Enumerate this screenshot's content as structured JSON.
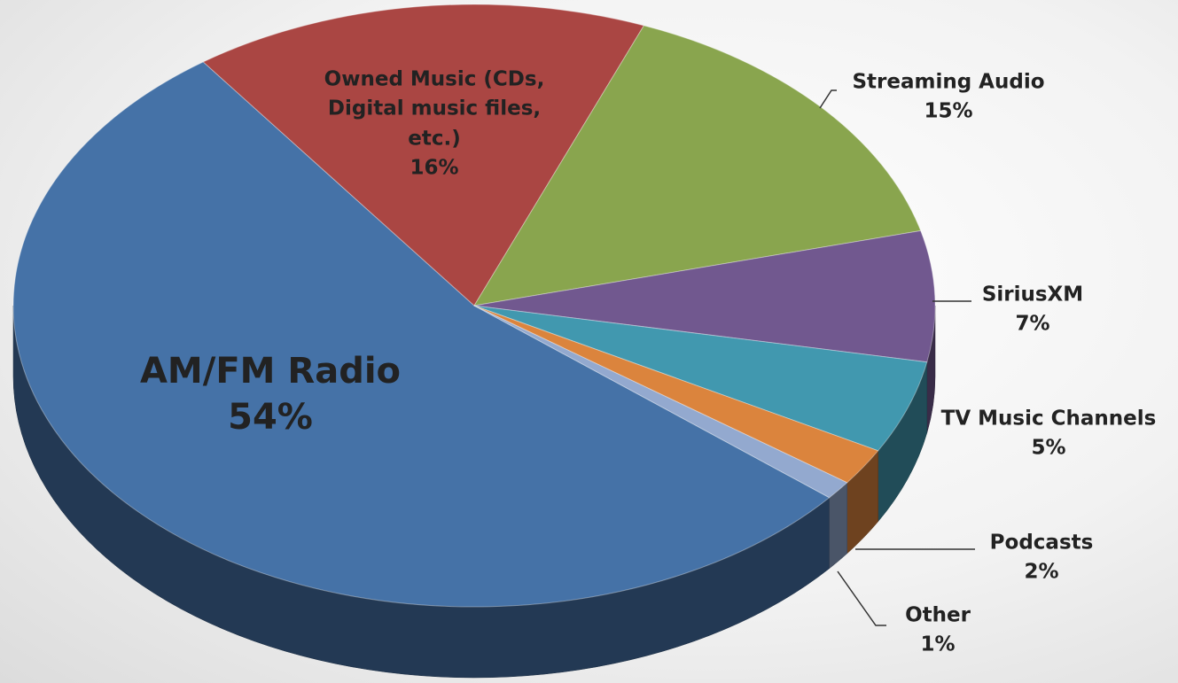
{
  "chart_data": {
    "type": "pie",
    "categories": [
      "AM/FM Radio",
      "Owned Music (CDs, Digital music files, etc.)",
      "Streaming Audio",
      "SiriusXM",
      "TV Music Channels",
      "Podcasts",
      "Other"
    ],
    "values": [
      54,
      16,
      15,
      7,
      5,
      2,
      1
    ],
    "value_labels": [
      "54%",
      "16%",
      "15%",
      "7%",
      "5%",
      "2%",
      "1%"
    ],
    "colors": [
      "#4572a7",
      "#aa4643",
      "#89a54e",
      "#71588f",
      "#4198af",
      "#db843d",
      "#93a9cf"
    ]
  }
}
